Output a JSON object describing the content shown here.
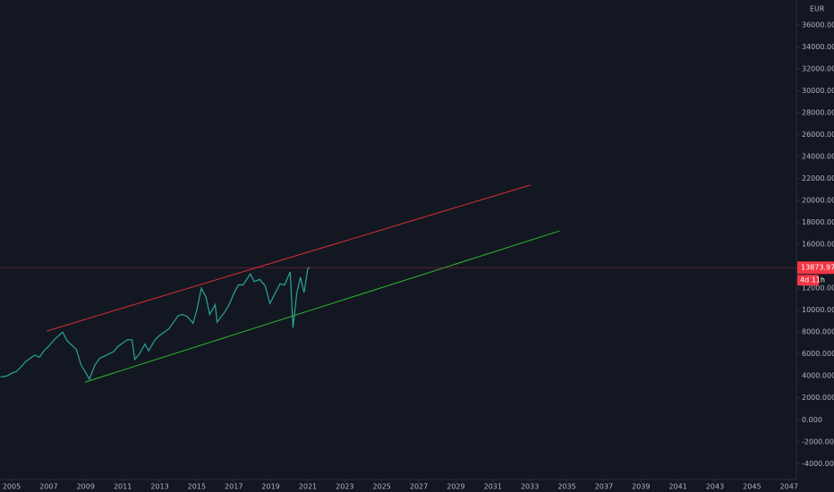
{
  "chart_data": {
    "type": "line",
    "color": "#26a69a",
    "currency": "EUR",
    "x": [
      2004.4,
      2004.75,
      2005,
      2005.25,
      2005.5,
      2005.75,
      2006,
      2006.25,
      2006.5,
      2006.75,
      2007,
      2007.25,
      2007.5,
      2007.75,
      2008,
      2008.25,
      2008.5,
      2008.75,
      2009,
      2009.2,
      2009.5,
      2009.75,
      2010,
      2010.25,
      2010.5,
      2010.75,
      2011,
      2011.25,
      2011.5,
      2011.65,
      2011.9,
      2012.2,
      2012.4,
      2012.75,
      2013,
      2013.25,
      2013.5,
      2013.75,
      2014,
      2014.25,
      2014.5,
      2014.8,
      2015,
      2015.25,
      2015.5,
      2015.7,
      2016,
      2016.1,
      2016.5,
      2016.75,
      2017,
      2017.25,
      2017.5,
      2017.9,
      2018.1,
      2018.4,
      2018.7,
      2018.95,
      2019.25,
      2019.5,
      2019.75,
      2020.05,
      2020.2,
      2020.4,
      2020.6,
      2020.8,
      2021.0,
      2021.1
    ],
    "values": [
      3900,
      4000,
      4250,
      4400,
      4800,
      5300,
      5600,
      5900,
      5700,
      6300,
      6700,
      7200,
      7600,
      8000,
      7200,
      6800,
      6400,
      5000,
      4300,
      3700,
      5000,
      5600,
      5800,
      6000,
      6200,
      6700,
      7000,
      7300,
      7300,
      5500,
      6000,
      6900,
      6300,
      7300,
      7700,
      8000,
      8300,
      8900,
      9500,
      9600,
      9400,
      8800,
      10000,
      12000,
      11200,
      9600,
      10500,
      8900,
      9800,
      10500,
      11500,
      12300,
      12300,
      13300,
      12600,
      12800,
      12200,
      10600,
      11600,
      12400,
      12300,
      13500,
      8400,
      11500,
      13000,
      11600,
      13800,
      13900
    ],
    "trendlines": [
      {
        "color": "#d32f2f",
        "x": [
          2006.9,
          2033
        ],
        "values": [
          8100,
          21400
        ]
      },
      {
        "color": "#2eb82e",
        "x": [
          2008.96,
          2034.6
        ],
        "values": [
          3430,
          17220
        ]
      }
    ],
    "price_line": {
      "value": 13873.97,
      "label": "13873.970",
      "color": "#f23645"
    },
    "countdown": "4d 11h",
    "xlim": [
      2004.37,
      2047.4
    ],
    "xticks": [
      2005,
      2007,
      2009,
      2011,
      2013,
      2015,
      2017,
      2019,
      2021,
      2023,
      2025,
      2027,
      2029,
      2031,
      2033,
      2035,
      2037,
      2039,
      2041,
      2043,
      2045,
      2047
    ],
    "ylim": [
      -5445,
      38286
    ],
    "yticks": [
      {
        "value": -4000,
        "label": "-4000.000"
      },
      {
        "value": -2000,
        "label": "-2000.000"
      },
      {
        "value": 0,
        "label": "0.000"
      },
      {
        "value": 2000,
        "label": "2000.000"
      },
      {
        "value": 4000,
        "label": "4000.000"
      },
      {
        "value": 6000,
        "label": "6000.000"
      },
      {
        "value": 8000,
        "label": "8000.000"
      },
      {
        "value": 10000,
        "label": "10000.000"
      },
      {
        "value": 12000,
        "label": "12000.000"
      },
      {
        "value": 14000,
        "label": "14000.000"
      },
      {
        "value": 16000,
        "label": "16000.000"
      },
      {
        "value": 18000,
        "label": "18000.000"
      },
      {
        "value": 20000,
        "label": "20000.000"
      },
      {
        "value": 22000,
        "label": "22000.000"
      },
      {
        "value": 24000,
        "label": "24000.000"
      },
      {
        "value": 26000,
        "label": "26000.000"
      },
      {
        "value": 28000,
        "label": "28000.000"
      },
      {
        "value": 30000,
        "label": "30000.000"
      },
      {
        "value": 32000,
        "label": "32000.000"
      },
      {
        "value": 34000,
        "label": "34000.000"
      },
      {
        "value": 36000,
        "label": "36000.000"
      }
    ],
    "grid": false
  }
}
